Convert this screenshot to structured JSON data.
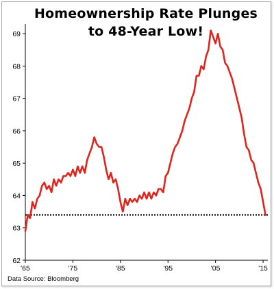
{
  "title_line1": "Homeownership Rate Plunges",
  "title_line2": "to 48-Year Low!",
  "source": "Data Source:  Bloomberg",
  "chart_data": {
    "type": "line",
    "title": "Homeownership Rate Plunges to 48-Year Low!",
    "xlabel": "",
    "ylabel": "",
    "xlim": [
      1965,
      2016
    ],
    "ylim": [
      62,
      69.3
    ],
    "xticks": [
      1965,
      1975,
      1985,
      1995,
      2005,
      2015
    ],
    "xtick_labels": [
      "'65",
      "'75",
      "'85",
      "'95",
      "'05",
      "'15"
    ],
    "yticks": [
      62,
      63,
      64,
      65,
      66,
      67,
      68,
      69
    ],
    "ytick_labels": [
      "62",
      "63",
      "64",
      "65",
      "66",
      "67",
      "68",
      "69"
    ],
    "grid": false,
    "line_color": "#e0231b",
    "reference_line": {
      "y": 63.4,
      "style": "dotted",
      "color": "#000000"
    },
    "series": [
      {
        "x": [
          1965.0,
          1965.5,
          1966.0,
          1966.5,
          1967.0,
          1967.5,
          1968.0,
          1968.5,
          1969.0,
          1969.5,
          1970.0,
          1970.5,
          1971.0,
          1971.5,
          1972.0,
          1972.5,
          1973.0,
          1973.5,
          1974.0,
          1974.5,
          1975.0,
          1975.5,
          1976.0,
          1976.5,
          1977.0,
          1977.5,
          1978.0,
          1978.5,
          1979.0,
          1979.5,
          1980.0,
          1980.5,
          1981.0,
          1981.5,
          1982.0,
          1982.5,
          1983.0,
          1983.5,
          1984.0,
          1984.5,
          1985.0,
          1985.5,
          1986.0,
          1986.5,
          1987.0,
          1987.5,
          1988.0,
          1988.5,
          1989.0,
          1989.5,
          1990.0,
          1990.5,
          1991.0,
          1991.5,
          1992.0,
          1992.5,
          1993.0,
          1993.5,
          1994.0,
          1994.5,
          1995.0,
          1995.5,
          1996.0,
          1996.5,
          1997.0,
          1997.5,
          1998.0,
          1998.5,
          1999.0,
          1999.5,
          2000.0,
          2000.5,
          2001.0,
          2001.5,
          2002.0,
          2002.5,
          2003.0,
          2003.5,
          2004.0,
          2004.5,
          2005.0,
          2005.5,
          2006.0,
          2006.5,
          2007.0,
          2007.5,
          2008.0,
          2008.5,
          2009.0,
          2009.5,
          2010.0,
          2010.5,
          2011.0,
          2011.5,
          2012.0,
          2012.5,
          2013.0,
          2013.5,
          2014.0,
          2014.5,
          2015.0,
          2015.5
        ],
        "values": [
          62.9,
          63.4,
          63.3,
          63.8,
          63.6,
          63.9,
          64.0,
          64.3,
          64.4,
          64.2,
          64.3,
          64.1,
          64.5,
          64.3,
          64.5,
          64.4,
          64.6,
          64.6,
          64.7,
          64.6,
          64.8,
          64.6,
          64.9,
          64.7,
          64.9,
          64.7,
          65.1,
          65.3,
          65.5,
          65.8,
          65.6,
          65.5,
          65.5,
          65.2,
          64.8,
          64.5,
          64.7,
          64.4,
          64.5,
          64.2,
          63.8,
          63.5,
          63.9,
          63.7,
          63.9,
          63.8,
          63.9,
          63.8,
          64.0,
          63.9,
          64.1,
          63.9,
          64.1,
          63.9,
          64.1,
          64.0,
          64.2,
          64.2,
          64.1,
          64.6,
          64.7,
          65.0,
          65.3,
          65.5,
          65.6,
          65.8,
          66.0,
          66.3,
          66.5,
          66.7,
          67.0,
          67.2,
          67.7,
          67.7,
          68.0,
          67.9,
          68.3,
          68.5,
          69.1,
          68.9,
          68.7,
          69.0,
          68.6,
          68.5,
          68.1,
          68.0,
          67.8,
          67.6,
          67.3,
          67.0,
          66.7,
          66.4,
          65.9,
          65.5,
          65.4,
          65.1,
          65.0,
          64.7,
          64.4,
          64.2,
          63.8,
          63.4
        ]
      }
    ]
  }
}
